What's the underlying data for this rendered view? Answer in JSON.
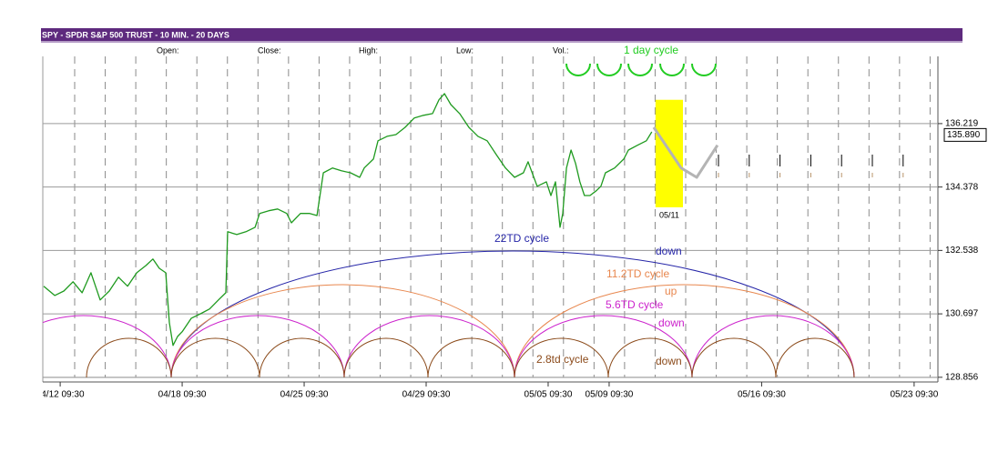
{
  "chart_data": {
    "type": "line",
    "title": "SPY - SPDR S&P 500 TRUST - 10 MIN. - 20 DAYS",
    "header_fields": [
      "Open:",
      "Close:",
      "High:",
      "Low:",
      "Vol.:"
    ],
    "color": "#1f9a1f",
    "x": [
      -0.54,
      -0.18,
      0.12,
      0.42,
      0.72,
      1.01,
      1.31,
      1.61,
      1.91,
      2.21,
      2.51,
      2.81,
      3.04,
      3.25,
      3.46,
      3.58,
      3.7,
      3.85,
      4.0,
      4.3,
      4.6,
      4.9,
      5.19,
      5.43,
      5.49,
      5.79,
      6.09,
      6.39,
      6.54,
      6.84,
      7.13,
      7.43,
      7.58,
      7.88,
      8.18,
      8.42,
      8.63,
      8.93,
      9.22,
      9.52,
      9.82,
      9.97,
      10.27,
      10.42,
      10.72,
      11.01,
      11.31,
      11.61,
      11.91,
      12.21,
      12.42,
      12.6,
      12.81,
      13.1,
      13.4,
      13.7,
      14.0,
      14.3,
      14.6,
      14.9,
      15.19,
      15.34,
      15.64,
      15.94,
      16.09,
      16.24,
      16.39,
      16.48,
      16.6,
      16.75,
      16.9,
      17.04,
      17.19,
      17.37,
      17.58,
      17.73,
      17.88,
      18.18,
      18.48,
      18.63,
      18.93,
      19.22,
      19.4
    ],
    "values": [
      131.5,
      131.23,
      131.36,
      131.63,
      131.31,
      131.89,
      131.1,
      131.36,
      131.76,
      131.5,
      131.89,
      132.1,
      132.29,
      132.02,
      131.89,
      130.44,
      129.78,
      130.04,
      130.18,
      130.57,
      130.7,
      130.84,
      131.1,
      131.31,
      133.08,
      133.0,
      133.08,
      133.21,
      133.61,
      133.69,
      133.74,
      133.61,
      133.34,
      133.61,
      133.61,
      133.55,
      134.79,
      134.93,
      134.85,
      134.79,
      134.66,
      134.93,
      135.19,
      135.72,
      135.85,
      135.9,
      136.11,
      136.38,
      136.46,
      136.51,
      136.91,
      137.09,
      136.77,
      136.51,
      136.11,
      135.85,
      135.72,
      135.32,
      134.93,
      134.66,
      134.79,
      135.11,
      134.4,
      134.53,
      134.13,
      134.53,
      133.21,
      133.61,
      134.93,
      135.45,
      135.06,
      134.53,
      134.13,
      134.13,
      134.27,
      134.4,
      134.79,
      134.93,
      135.19,
      135.45,
      135.59,
      135.72,
      135.98
    ],
    "forecast": {
      "color": "#b4b4b4",
      "x": [
        19.46,
        20.36,
        20.87,
        21.55
      ],
      "values": [
        136.11,
        134.93,
        134.66,
        135.59
      ]
    },
    "highlight": {
      "label": "05/11",
      "color": "#ffff00",
      "x": [
        19.52,
        20.42
      ],
      "y": [
        133.79,
        136.91
      ]
    },
    "last_price": {
      "value": 135.89,
      "label": "135.890"
    },
    "xlim": [
      -0.57,
      28.78
    ],
    "xticks": [
      {
        "value": 0,
        "label": "04/12 09:30"
      },
      {
        "value": 4,
        "label": "04/18 09:30"
      },
      {
        "value": 8,
        "label": "04/25 09:30"
      },
      {
        "value": 12,
        "label": "04/29 09:30"
      },
      {
        "value": 16,
        "label": "05/05 09:30"
      },
      {
        "value": 18,
        "label": "05/09 09:30"
      },
      {
        "value": 23,
        "label": "05/16 09:30"
      },
      {
        "value": 28,
        "label": "05/23 09:30"
      }
    ],
    "ylim": [
      128.72,
      138.17
    ],
    "yticks": [
      128.856,
      130.697,
      132.538,
      134.378,
      136.219
    ],
    "grid": true,
    "cycles": [
      {
        "label": "1 day cycle",
        "color": "#22cc22"
      },
      {
        "label": "22TD cycle",
        "direction": "down",
        "color": "#2626a8"
      },
      {
        "label": "11.2TD cycle",
        "direction": "up",
        "color": "#e8874e"
      },
      {
        "label": "5.6TD cycle",
        "direction": "down",
        "color": "#cc22cc"
      },
      {
        "label": "2.8td cycle",
        "direction": "down",
        "color": "#8b4a1a"
      }
    ]
  }
}
